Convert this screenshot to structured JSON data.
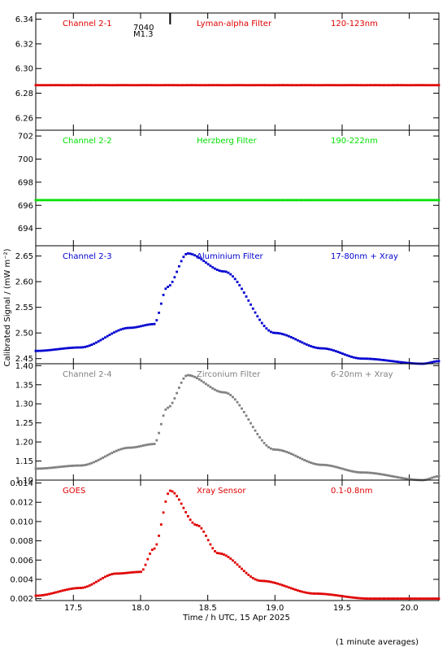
{
  "ylabel": "Calibrated Signal / (mW m⁻²)",
  "xlabel": "Time / h UTC, 15 Apr 2025",
  "footnote": "(1 minute averages)",
  "event": {
    "id": "7040",
    "class": "M1.3",
    "time": 18.22
  },
  "chart_data": [
    {
      "type": "scatter",
      "channel": "Channel 2-1",
      "filter": "Lyman-alpha Filter",
      "band": "120-123nm",
      "color": "#e00000",
      "ylim": [
        6.25,
        6.345
      ],
      "yticks": [
        6.26,
        6.28,
        6.3,
        6.32,
        6.34
      ],
      "ytick_labels": [
        "6.26",
        "6.28",
        "6.30",
        "6.32",
        "6.34"
      ],
      "profile": "flat",
      "params": {
        "level": 6.2865
      }
    },
    {
      "type": "scatter",
      "channel": "Channel 2-2",
      "filter": "Herzberg Filter",
      "band": "190-222nm",
      "color": "#00e000",
      "ylim": [
        692.5,
        702.5
      ],
      "yticks": [
        694,
        696,
        698,
        700,
        702
      ],
      "ytick_labels": [
        "694",
        "696",
        "698",
        "700",
        "702"
      ],
      "profile": "flat",
      "params": {
        "level": 696.45
      }
    },
    {
      "type": "scatter",
      "channel": "Channel 2-3",
      "filter": "Aluminium Filter",
      "band": "17-80nm + Xray",
      "color": "#0000d0",
      "ylim": [
        2.44,
        2.67
      ],
      "yticks": [
        2.45,
        2.5,
        2.55,
        2.6,
        2.65
      ],
      "ytick_labels": [
        "2.45",
        "2.50",
        "2.55",
        "2.60",
        "2.65"
      ],
      "profile": "flare",
      "params": {
        "base": 2.465,
        "pre": 2.51,
        "peak": 2.655,
        "mid": 2.62,
        "late": 2.5,
        "end": 2.44,
        "tail": 2.445
      }
    },
    {
      "type": "scatter",
      "channel": "Channel 2-4",
      "filter": "Zirconium Filter",
      "band": "6-20nm + Xray",
      "color": "#808080",
      "ylim": [
        1.1,
        1.405
      ],
      "yticks": [
        1.1,
        1.15,
        1.2,
        1.25,
        1.3,
        1.35,
        1.4
      ],
      "ytick_labels": [
        "1.10",
        "1.15",
        "1.20",
        "1.25",
        "1.30",
        "1.35",
        "1.40"
      ],
      "profile": "flare",
      "params": {
        "base": 1.13,
        "pre": 1.185,
        "peak": 1.375,
        "mid": 1.33,
        "late": 1.18,
        "end": 1.1,
        "tail": 1.11
      }
    },
    {
      "type": "scatter",
      "channel": "GOES",
      "filter": "Xray Sensor",
      "band": "0.1-0.8nm",
      "color": "#e00000",
      "ylim": [
        0.0018,
        0.0143
      ],
      "yticks": [
        0.002,
        0.004,
        0.006,
        0.008,
        0.01,
        0.012,
        0.014
      ],
      "ytick_labels": [
        "0.002",
        "0.004",
        "0.006",
        "0.008",
        "0.010",
        "0.012",
        "0.014"
      ],
      "profile": "goes",
      "params": {
        "base": 0.0023,
        "pre": 0.0046,
        "peak": 0.0132,
        "shoulder": 0.0067,
        "end": 0.002
      }
    }
  ],
  "xaxis": {
    "xlim": [
      17.22,
      20.22
    ],
    "xticks": [
      17.5,
      18.0,
      18.5,
      19.0,
      19.5,
      20.0
    ],
    "xtick_labels": [
      "17.5",
      "18.0",
      "18.5",
      "19.0",
      "19.5",
      "20.0"
    ]
  }
}
